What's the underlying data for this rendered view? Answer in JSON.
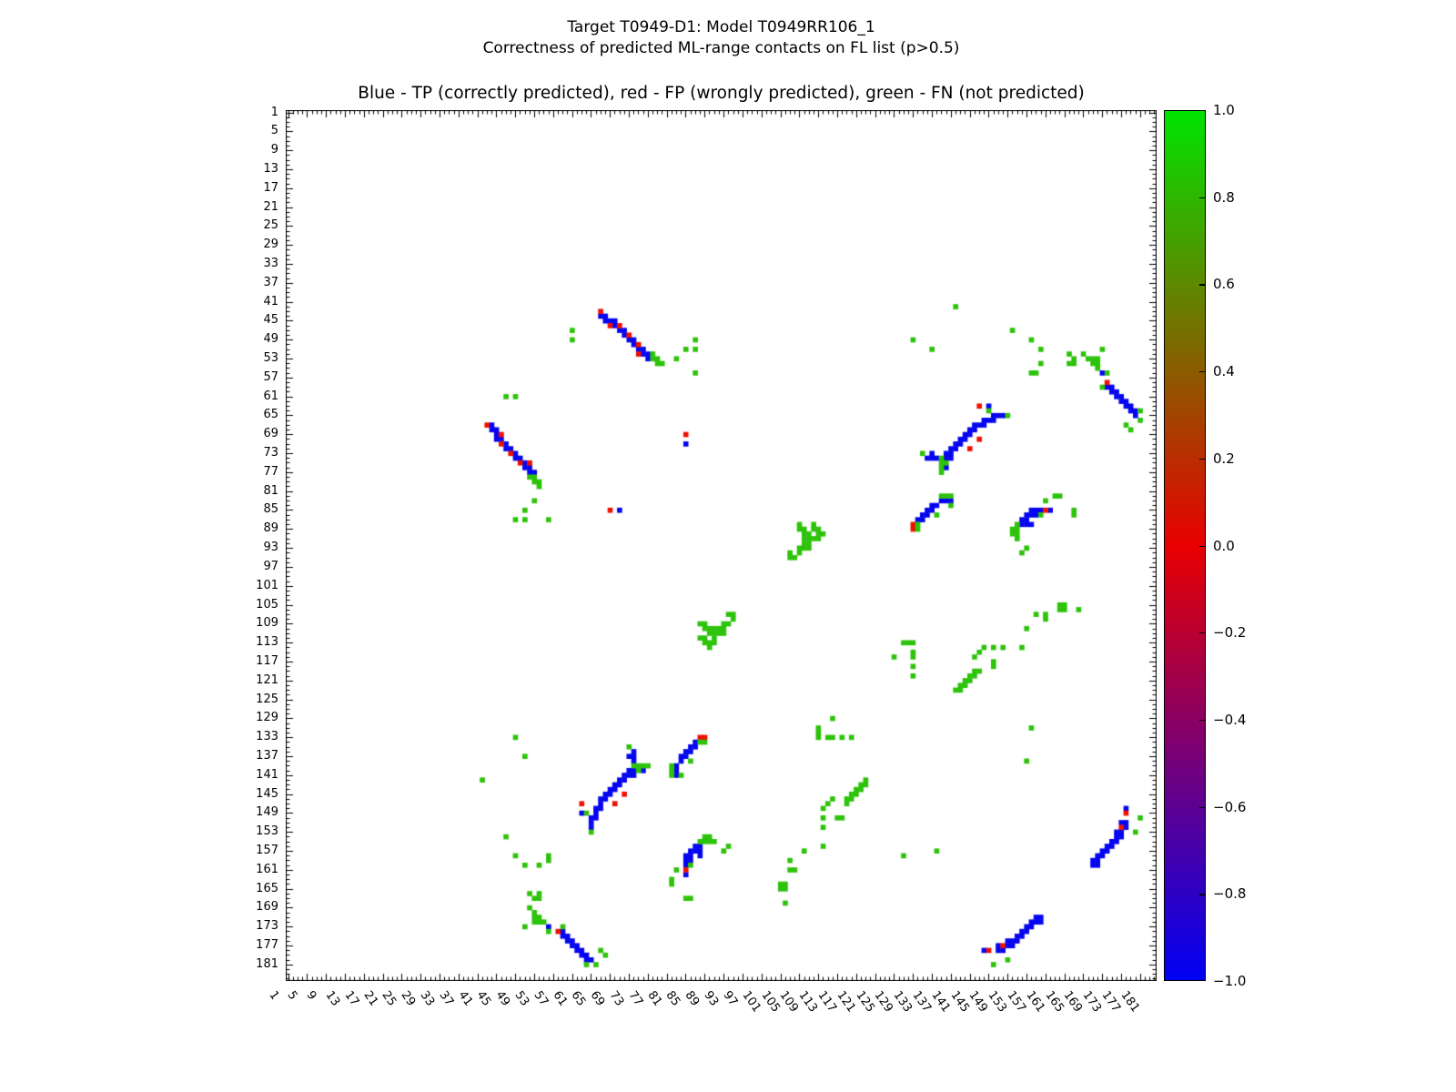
{
  "figure": {
    "suptitle_line1": "Target T0949-D1: Model T0949RR106_1",
    "suptitle_line2": "Correctness of predicted ML-range contacts on FL list (p>0.5)",
    "axes_title": "Blue - TP (correctly predicted), red - FP (wrongly predicted), green - FN (not predicted)"
  },
  "chart_data": {
    "type": "heatmap",
    "title": "Blue - TP (correctly predicted), red - FP (wrongly predicted), green - FN (not predicted)",
    "subtitle": "Target T0949-D1: Model T0949RR106_1 — Correctness of predicted ML-range contacts on FL list (p>0.5)",
    "axis": {
      "min": 1,
      "max": 184,
      "tick_labels": [
        1,
        5,
        9,
        13,
        17,
        21,
        25,
        29,
        33,
        37,
        41,
        45,
        49,
        53,
        57,
        61,
        65,
        69,
        73,
        77,
        81,
        85,
        89,
        93,
        97,
        101,
        105,
        109,
        113,
        117,
        121,
        125,
        129,
        133,
        137,
        141,
        145,
        149,
        153,
        157,
        161,
        165,
        169,
        173,
        177,
        181
      ]
    },
    "grid": false,
    "symmetric": true,
    "colors": {
      "tp": "#0505f0",
      "fp": "#ee1000",
      "fn": "#2dc30a"
    },
    "series": [
      {
        "name": "TP (correctly predicted)",
        "color_key": "tp",
        "points": [
          [
            67,
            44
          ],
          [
            68,
            44
          ],
          [
            68,
            45
          ],
          [
            69,
            45
          ],
          [
            70,
            45
          ],
          [
            70,
            46
          ],
          [
            71,
            47
          ],
          [
            72,
            47
          ],
          [
            72,
            48
          ],
          [
            73,
            49
          ],
          [
            74,
            49
          ],
          [
            74,
            50
          ],
          [
            75,
            51
          ],
          [
            76,
            51
          ],
          [
            76,
            52
          ],
          [
            77,
            52
          ],
          [
            77,
            53
          ],
          [
            149,
            63
          ],
          [
            150,
            65
          ],
          [
            151,
            65
          ],
          [
            152,
            65
          ],
          [
            148,
            66
          ],
          [
            149,
            66
          ],
          [
            150,
            66
          ],
          [
            146,
            67
          ],
          [
            147,
            67
          ],
          [
            148,
            67
          ],
          [
            145,
            68
          ],
          [
            146,
            68
          ],
          [
            144,
            69
          ],
          [
            145,
            69
          ],
          [
            143,
            70
          ],
          [
            144,
            70
          ],
          [
            142,
            71
          ],
          [
            143,
            71
          ],
          [
            141,
            72
          ],
          [
            142,
            72
          ],
          [
            140,
            73
          ],
          [
            141,
            73
          ],
          [
            137,
            73
          ],
          [
            136,
            74
          ],
          [
            137,
            74
          ],
          [
            138,
            74
          ],
          [
            140,
            74
          ],
          [
            141,
            74
          ],
          [
            140,
            76
          ],
          [
            174,
            59
          ],
          [
            175,
            59
          ],
          [
            175,
            60
          ],
          [
            176,
            60
          ],
          [
            176,
            61
          ],
          [
            177,
            61
          ],
          [
            177,
            62
          ],
          [
            178,
            62
          ],
          [
            178,
            63
          ],
          [
            179,
            63
          ],
          [
            179,
            64
          ],
          [
            180,
            64
          ],
          [
            180,
            65
          ],
          [
            139,
            83
          ],
          [
            140,
            83
          ],
          [
            141,
            83
          ],
          [
            137,
            84
          ],
          [
            138,
            84
          ],
          [
            136,
            85
          ],
          [
            137,
            85
          ],
          [
            135,
            86
          ],
          [
            136,
            86
          ],
          [
            134,
            87
          ],
          [
            135,
            87
          ],
          [
            158,
            85
          ],
          [
            159,
            85
          ],
          [
            160,
            85
          ],
          [
            162,
            85
          ],
          [
            157,
            86
          ],
          [
            158,
            86
          ],
          [
            159,
            86
          ],
          [
            156,
            87
          ],
          [
            157,
            87
          ],
          [
            156,
            88
          ],
          [
            157,
            88
          ],
          [
            158,
            88
          ],
          [
            178,
            148
          ],
          [
            177,
            151
          ],
          [
            178,
            151
          ],
          [
            178,
            152
          ],
          [
            176,
            153
          ],
          [
            177,
            153
          ],
          [
            176,
            154
          ],
          [
            177,
            154
          ],
          [
            175,
            155
          ],
          [
            176,
            155
          ],
          [
            174,
            156
          ],
          [
            175,
            156
          ],
          [
            173,
            157
          ],
          [
            174,
            157
          ],
          [
            172,
            158
          ],
          [
            173,
            158
          ],
          [
            171,
            159
          ],
          [
            172,
            159
          ],
          [
            171,
            160
          ],
          [
            172,
            160
          ],
          [
            85,
            71
          ],
          [
            173,
            56
          ]
        ]
      },
      {
        "name": "FP (wrongly predicted)",
        "color_key": "fp",
        "points": [
          [
            67,
            43
          ],
          [
            69,
            46
          ],
          [
            71,
            46
          ],
          [
            73,
            48
          ],
          [
            75,
            50
          ],
          [
            75,
            52
          ],
          [
            147,
            63
          ],
          [
            147,
            70
          ],
          [
            145,
            72
          ],
          [
            174,
            58
          ],
          [
            133,
            88
          ],
          [
            133,
            89
          ],
          [
            161,
            85
          ],
          [
            178,
            149
          ],
          [
            177,
            152
          ],
          [
            85,
            69
          ]
        ]
      },
      {
        "name": "FN (not predicted)",
        "color_key": "fn",
        "points": [
          [
            78,
            52
          ],
          [
            78,
            53
          ],
          [
            79,
            53
          ],
          [
            79,
            54
          ],
          [
            80,
            54
          ],
          [
            61,
            47
          ],
          [
            61,
            49
          ],
          [
            83,
            53
          ],
          [
            85,
            51
          ],
          [
            87,
            49
          ],
          [
            87,
            51
          ],
          [
            87,
            56
          ],
          [
            149,
            64
          ],
          [
            153,
            65
          ],
          [
            135,
            73
          ],
          [
            139,
            74
          ],
          [
            139,
            75
          ],
          [
            140,
            75
          ],
          [
            139,
            76
          ],
          [
            139,
            77
          ],
          [
            173,
            59
          ],
          [
            181,
            64
          ],
          [
            181,
            66
          ],
          [
            178,
            67
          ],
          [
            179,
            68
          ],
          [
            171,
            53
          ],
          [
            172,
            53
          ],
          [
            171,
            54
          ],
          [
            172,
            54
          ],
          [
            172,
            55
          ],
          [
            174,
            56
          ],
          [
            166,
            54
          ],
          [
            167,
            53
          ],
          [
            167,
            54
          ],
          [
            173,
            51
          ],
          [
            160,
            51
          ],
          [
            160,
            54
          ],
          [
            158,
            56
          ],
          [
            159,
            56
          ],
          [
            154,
            47
          ],
          [
            142,
            42
          ],
          [
            137,
            51
          ],
          [
            133,
            49
          ],
          [
            158,
            49
          ],
          [
            166,
            52
          ],
          [
            169,
            52
          ],
          [
            170,
            53
          ],
          [
            139,
            82
          ],
          [
            140,
            82
          ],
          [
            141,
            82
          ],
          [
            141,
            84
          ],
          [
            134,
            88
          ],
          [
            134,
            89
          ],
          [
            138,
            86
          ],
          [
            161,
            83
          ],
          [
            163,
            82
          ],
          [
            164,
            82
          ],
          [
            167,
            85
          ],
          [
            167,
            86
          ],
          [
            160,
            86
          ],
          [
            155,
            88
          ],
          [
            154,
            89
          ],
          [
            155,
            89
          ],
          [
            154,
            90
          ],
          [
            155,
            90
          ],
          [
            155,
            91
          ],
          [
            157,
            93
          ],
          [
            156,
            94
          ],
          [
            107,
            94
          ],
          [
            107,
            95
          ],
          [
            108,
            95
          ],
          [
            109,
            88
          ],
          [
            109,
            89
          ],
          [
            109,
            93
          ],
          [
            109,
            94
          ],
          [
            110,
            89
          ],
          [
            110,
            90
          ],
          [
            110,
            91
          ],
          [
            110,
            92
          ],
          [
            110,
            93
          ],
          [
            111,
            90
          ],
          [
            111,
            91
          ],
          [
            111,
            92
          ],
          [
            111,
            93
          ],
          [
            112,
            88
          ],
          [
            112,
            89
          ],
          [
            112,
            91
          ],
          [
            113,
            89
          ],
          [
            113,
            90
          ],
          [
            113,
            91
          ],
          [
            114,
            90
          ],
          [
            142,
            123
          ],
          [
            143,
            123
          ],
          [
            143,
            122
          ],
          [
            144,
            122
          ],
          [
            144,
            121
          ],
          [
            145,
            121
          ],
          [
            145,
            120
          ],
          [
            146,
            120
          ],
          [
            146,
            119
          ],
          [
            147,
            119
          ],
          [
            146,
            116
          ],
          [
            147,
            115
          ],
          [
            148,
            114
          ],
          [
            150,
            114
          ],
          [
            152,
            114
          ],
          [
            156,
            114
          ],
          [
            150,
            117
          ],
          [
            150,
            118
          ],
          [
            129,
            116
          ],
          [
            131,
            113
          ],
          [
            132,
            113
          ],
          [
            133,
            113
          ],
          [
            133,
            115
          ],
          [
            133,
            116
          ],
          [
            133,
            118
          ],
          [
            133,
            120
          ],
          [
            157,
            110
          ],
          [
            159,
            107
          ],
          [
            161,
            107
          ],
          [
            161,
            108
          ],
          [
            164,
            105
          ],
          [
            165,
            105
          ],
          [
            164,
            106
          ],
          [
            165,
            106
          ],
          [
            168,
            106
          ],
          [
            158,
            131
          ],
          [
            157,
            138
          ],
          [
            181,
            150
          ],
          [
            180,
            153
          ]
        ]
      }
    ],
    "colorbar": {
      "top_color": "#00e400",
      "mid_color": "#e80000",
      "bottom_color": "#0000f4",
      "vmin": -1.0,
      "vmax": 1.0,
      "tick_labels": [
        "1.0",
        "0.8",
        "0.6",
        "0.4",
        "0.2",
        "0.0",
        "−0.2",
        "−0.4",
        "−0.6",
        "−0.8",
        "−1.0"
      ]
    }
  }
}
